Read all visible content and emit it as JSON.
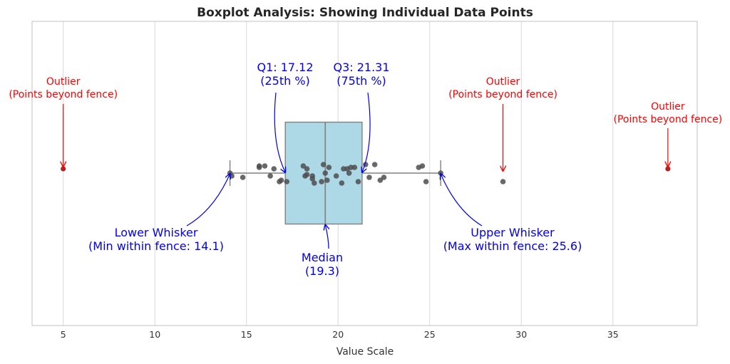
{
  "chart_data": {
    "type": "box",
    "title": "Boxplot Analysis: Showing Individual Data Points",
    "xlabel": "Value Scale",
    "ylabel": "",
    "xlim": [
      3.3,
      39.6
    ],
    "xticks": [
      5,
      10,
      15,
      20,
      25,
      30,
      35
    ],
    "xtick_labels": [
      "5",
      "10",
      "15",
      "20",
      "25",
      "30",
      "35"
    ],
    "grid": "vertical",
    "box": {
      "q1": 17.12,
      "median": 19.3,
      "q3": 21.31,
      "whisker_low": 14.1,
      "whisker_high": 25.6,
      "fill": "#add8e6"
    },
    "points": [
      {
        "x": 14.1,
        "jitter": 0.0
      },
      {
        "x": 14.2,
        "jitter": 0.02
      },
      {
        "x": 14.8,
        "jitter": 0.03
      },
      {
        "x": 15.7,
        "jitter": -0.05
      },
      {
        "x": 15.7,
        "jitter": -0.04
      },
      {
        "x": 16.0,
        "jitter": -0.05
      },
      {
        "x": 16.3,
        "jitter": 0.02
      },
      {
        "x": 16.5,
        "jitter": -0.03
      },
      {
        "x": 16.8,
        "jitter": 0.06
      },
      {
        "x": 16.9,
        "jitter": 0.05
      },
      {
        "x": 17.2,
        "jitter": 0.06
      },
      {
        "x": 18.1,
        "jitter": -0.05
      },
      {
        "x": 18.2,
        "jitter": 0.02
      },
      {
        "x": 18.3,
        "jitter": 0.01
      },
      {
        "x": 18.3,
        "jitter": -0.03
      },
      {
        "x": 18.6,
        "jitter": 0.02
      },
      {
        "x": 18.6,
        "jitter": 0.04
      },
      {
        "x": 18.7,
        "jitter": 0.07
      },
      {
        "x": 19.1,
        "jitter": 0.06
      },
      {
        "x": 19.2,
        "jitter": -0.06
      },
      {
        "x": 19.3,
        "jitter": 0.0
      },
      {
        "x": 19.4,
        "jitter": 0.05
      },
      {
        "x": 19.5,
        "jitter": -0.04
      },
      {
        "x": 19.9,
        "jitter": 0.02
      },
      {
        "x": 20.2,
        "jitter": 0.07
      },
      {
        "x": 20.3,
        "jitter": -0.03
      },
      {
        "x": 20.5,
        "jitter": -0.03
      },
      {
        "x": 20.6,
        "jitter": 0.0
      },
      {
        "x": 20.7,
        "jitter": -0.04
      },
      {
        "x": 20.9,
        "jitter": -0.04
      },
      {
        "x": 21.1,
        "jitter": 0.06
      },
      {
        "x": 21.5,
        "jitter": -0.06
      },
      {
        "x": 21.7,
        "jitter": 0.03
      },
      {
        "x": 22.0,
        "jitter": -0.06
      },
      {
        "x": 22.3,
        "jitter": 0.05
      },
      {
        "x": 22.5,
        "jitter": 0.03
      },
      {
        "x": 24.4,
        "jitter": -0.04
      },
      {
        "x": 24.6,
        "jitter": -0.05
      },
      {
        "x": 24.8,
        "jitter": 0.06
      },
      {
        "x": 25.6,
        "jitter": 0.0
      },
      {
        "x": 29.0,
        "jitter": 0.06
      }
    ],
    "outliers": [
      {
        "x": 5.0,
        "jitter": -0.03
      },
      {
        "x": 38.0,
        "jitter": -0.03
      }
    ],
    "annotations": {
      "q1": {
        "lines": [
          "Q1: 17.12",
          "(25th %)"
        ]
      },
      "q3": {
        "lines": [
          "Q3: 21.31",
          "(75th %)"
        ]
      },
      "median": {
        "lines": [
          "Median",
          "(19.3)"
        ]
      },
      "lower_whisker": {
        "lines": [
          "Lower Whisker",
          "(Min within fence: 14.1)"
        ]
      },
      "upper_whisker": {
        "lines": [
          "Upper Whisker",
          "(Max within fence: 25.6)"
        ]
      },
      "outlier_left": {
        "lines": [
          "Outlier",
          "(Points beyond fence)"
        ]
      },
      "outlier_mid": {
        "lines": [
          "Outlier",
          "(Points beyond fence)"
        ]
      },
      "outlier_right": {
        "lines": [
          "Outlier",
          "(Points beyond fence)"
        ]
      }
    },
    "colors": {
      "annotation": "#0000ee",
      "outlier_annotation": "#ff0000",
      "outlier_point": "#b22222",
      "point": "#4d4d4d",
      "box_edge": "#808080",
      "grid": "#d9d9d9"
    }
  }
}
